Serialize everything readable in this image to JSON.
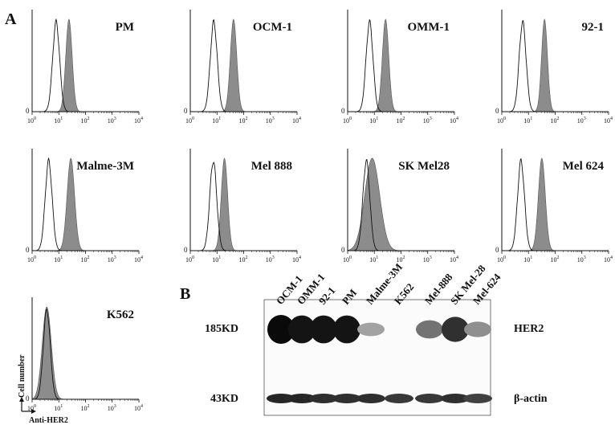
{
  "panels": {
    "a_label": "A",
    "b_label": "B"
  },
  "flow_axis": {
    "ticks": [
      "10",
      "10",
      "10",
      "10",
      "10"
    ],
    "exponents": [
      "0",
      "1",
      "2",
      "3",
      "4"
    ],
    "zero": "0"
  },
  "flow_panels": [
    {
      "name": "PM",
      "control_peak": 0.9,
      "her2_peak": 1.38,
      "her2_width": 0.12
    },
    {
      "name": "OCM-1",
      "control_peak": 0.88,
      "her2_peak": 1.62,
      "her2_width": 0.12
    },
    {
      "name": "OMM-1",
      "control_peak": 0.82,
      "her2_peak": 1.42,
      "her2_width": 0.12
    },
    {
      "name": "92-1",
      "control_peak": 0.78,
      "her2_peak": 1.6,
      "her2_width": 0.11
    },
    {
      "name": "Malme-3M",
      "control_peak": 0.62,
      "her2_peak": 1.45,
      "her2_width": 0.14
    },
    {
      "name": "Mel 888",
      "control_peak": 0.86,
      "her2_peak": 1.28,
      "her2_width": 0.12
    },
    {
      "name": "SK Mel28",
      "control_peak": 0.7,
      "her2_peak": 0.92,
      "her2_width": 0.28
    },
    {
      "name": "Mel 624",
      "control_peak": 0.72,
      "her2_peak": 1.5,
      "her2_width": 0.13
    },
    {
      "name": "K562",
      "control_peak": 0.55,
      "her2_peak": 0.55,
      "her2_width": 0.17
    }
  ],
  "flow_axis_titles": {
    "y": "Cell number",
    "x": "Anti-HER2"
  },
  "western_blot": {
    "lanes": [
      "OCM-1",
      "OMM-1",
      "92-1",
      "PM",
      "Malme-3M",
      "K562",
      "Mel-888",
      "SK Mel-28",
      "Mel-624"
    ],
    "band_185_label": "185KD",
    "band_43_label": "43KD",
    "her2_label": "HER2",
    "actin_label": "β-actin",
    "her2_intensity": [
      1.0,
      0.95,
      0.95,
      0.95,
      0.2,
      0.0,
      0.45,
      0.8,
      0.3
    ],
    "actin_intensity": [
      0.9,
      0.9,
      0.85,
      0.85,
      0.85,
      0.8,
      0.8,
      0.85,
      0.75
    ]
  },
  "colors": {
    "fill": "#8c8c8c",
    "ink": "#111111"
  }
}
